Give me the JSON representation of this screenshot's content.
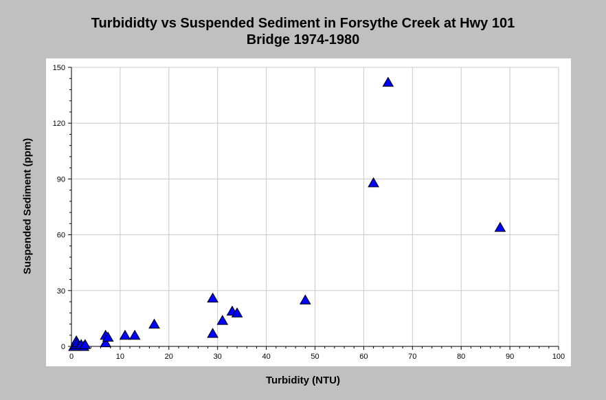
{
  "chart_data": {
    "type": "scatter",
    "title": "Turbididty vs Suspended Sediment in Forsythe Creek at Hwy 101",
    "subtitle": "Bridge 1974-1980",
    "xlabel": "Turbidity (NTU)",
    "ylabel": "Suspended Sediment (ppm)",
    "xlim": [
      0,
      100
    ],
    "ylim": [
      0,
      150
    ],
    "xticks": [
      0,
      10,
      20,
      30,
      40,
      50,
      60,
      70,
      80,
      90,
      100
    ],
    "yticks": [
      0,
      30,
      60,
      90,
      120,
      150
    ],
    "grid": true,
    "marker": "triangle",
    "marker_color": "#0000ff",
    "points": [
      {
        "x": 0.5,
        "y": 0
      },
      {
        "x": 0.8,
        "y": 1
      },
      {
        "x": 1,
        "y": 3
      },
      {
        "x": 1.2,
        "y": 2
      },
      {
        "x": 1.5,
        "y": 0
      },
      {
        "x": 2,
        "y": 1
      },
      {
        "x": 2.5,
        "y": 0
      },
      {
        "x": 2.8,
        "y": 1
      },
      {
        "x": 7,
        "y": 2
      },
      {
        "x": 7,
        "y": 6
      },
      {
        "x": 7.5,
        "y": 5
      },
      {
        "x": 11,
        "y": 6
      },
      {
        "x": 13,
        "y": 6
      },
      {
        "x": 17,
        "y": 12
      },
      {
        "x": 29,
        "y": 26
      },
      {
        "x": 29,
        "y": 7
      },
      {
        "x": 31,
        "y": 14
      },
      {
        "x": 33,
        "y": 19
      },
      {
        "x": 34,
        "y": 18
      },
      {
        "x": 48,
        "y": 25
      },
      {
        "x": 62,
        "y": 88
      },
      {
        "x": 65,
        "y": 142
      },
      {
        "x": 88,
        "y": 64
      }
    ]
  }
}
